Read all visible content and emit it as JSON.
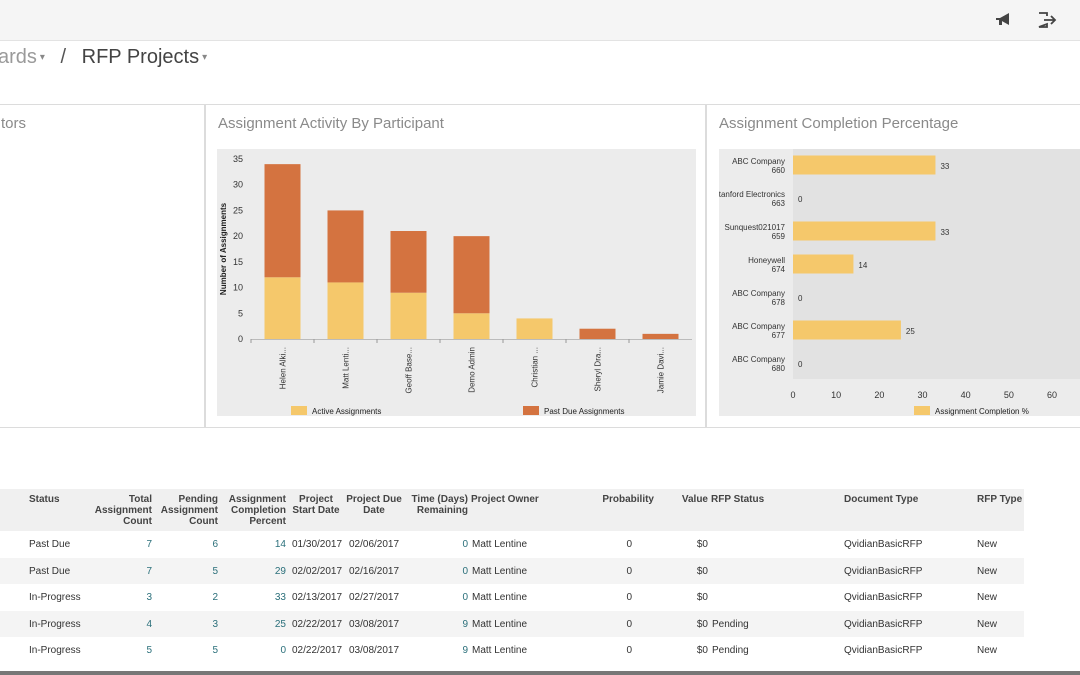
{
  "breadcrumb": {
    "parent": "ards",
    "current": "RFP Projects"
  },
  "panels": {
    "left_title": "tors",
    "activity_title": "Assignment Activity By Participant",
    "completion_title": "Assignment Completion Percentage"
  },
  "chart_data": [
    {
      "type": "bar",
      "stacked": true,
      "title": "Assignment Activity By Participant",
      "ylabel": "Number of Assignments",
      "ylim": [
        0,
        35
      ],
      "yticks": [
        "0",
        "5",
        "10",
        "15",
        "20",
        "25",
        "30",
        "35"
      ],
      "categories": [
        "Helen Alki...",
        "Matt Lenti...",
        "Geoff Base...",
        "Demo Admin",
        "Christian ...",
        "Sheryl Dra...",
        "Jamie Davi..."
      ],
      "series": [
        {
          "name": "Active Assignments",
          "color": "#f5c86b",
          "values": [
            12,
            11,
            9,
            5,
            4,
            0,
            0
          ]
        },
        {
          "name": "Past Due Assignments",
          "color": "#d47340",
          "values": [
            22,
            14,
            12,
            15,
            0,
            2,
            1
          ]
        }
      ],
      "legend": "bottom"
    },
    {
      "type": "bar",
      "orientation": "horizontal",
      "title": "Assignment Completion Percentage",
      "xlim": [
        0,
        60
      ],
      "xticks": [
        "0",
        "10",
        "20",
        "30",
        "40",
        "50",
        "60"
      ],
      "categories": [
        {
          "name": "ABC Company",
          "id": "660"
        },
        {
          "name": "Stanford Electronics",
          "id": "663"
        },
        {
          "name": "Sunquest021017",
          "id": "659"
        },
        {
          "name": "Honeywell",
          "id": "674"
        },
        {
          "name": "ABC Company",
          "id": "678"
        },
        {
          "name": "ABC Company",
          "id": "677"
        },
        {
          "name": "ABC Company",
          "id": "680"
        }
      ],
      "series": [
        {
          "name": "Assignment Completion %",
          "color": "#f5c86b",
          "values": [
            33,
            0,
            33,
            14,
            0,
            25,
            0
          ]
        }
      ],
      "legend": "bottom"
    }
  ],
  "table": {
    "headers": {
      "status": "Status",
      "total": [
        "Total",
        "Assignment",
        "Count"
      ],
      "pending": [
        "Pending",
        "Assignment",
        "Count"
      ],
      "completion": [
        "Assignment",
        "Completion",
        "Percent"
      ],
      "start": [
        "Project",
        "Start Date"
      ],
      "due": [
        "Project Due",
        "Date"
      ],
      "time": [
        "Time (Days)",
        "Remaining"
      ],
      "owner": "Project Owner",
      "prob": "Probability",
      "value": "Value",
      "rfpstatus": "RFP Status",
      "doctype": "Document Type",
      "rfptype": "RFP Type"
    },
    "rows": [
      {
        "status": "Past Due",
        "total": "7",
        "pending": "6",
        "completion": "14",
        "start": "01/30/2017",
        "due": "02/06/2017",
        "time": "0",
        "owner": "Matt Lentine",
        "prob": "0",
        "value": "$0",
        "rfpstatus": "",
        "doctype": "QvidianBasicRFP",
        "rfptype": "New"
      },
      {
        "status": "Past Due",
        "total": "7",
        "pending": "5",
        "completion": "29",
        "start": "02/02/2017",
        "due": "02/16/2017",
        "time": "0",
        "owner": "Matt Lentine",
        "prob": "0",
        "value": "$0",
        "rfpstatus": "",
        "doctype": "QvidianBasicRFP",
        "rfptype": "New"
      },
      {
        "status": "In-Progress",
        "total": "3",
        "pending": "2",
        "completion": "33",
        "start": "02/13/2017",
        "due": "02/27/2017",
        "time": "0",
        "owner": "Matt Lentine",
        "prob": "0",
        "value": "$0",
        "rfpstatus": "",
        "doctype": "QvidianBasicRFP",
        "rfptype": "New"
      },
      {
        "status": "In-Progress",
        "total": "4",
        "pending": "3",
        "completion": "25",
        "start": "02/22/2017",
        "due": "03/08/2017",
        "time": "9",
        "owner": "Matt Lentine",
        "prob": "0",
        "value": "$0",
        "rfpstatus": "Pending",
        "doctype": "QvidianBasicRFP",
        "rfptype": "New"
      },
      {
        "status": "In-Progress",
        "total": "5",
        "pending": "5",
        "completion": "0",
        "start": "02/22/2017",
        "due": "03/08/2017",
        "time": "9",
        "owner": "Matt Lentine",
        "prob": "0",
        "value": "$0",
        "rfpstatus": "Pending",
        "doctype": "QvidianBasicRFP",
        "rfptype": "New"
      }
    ]
  }
}
